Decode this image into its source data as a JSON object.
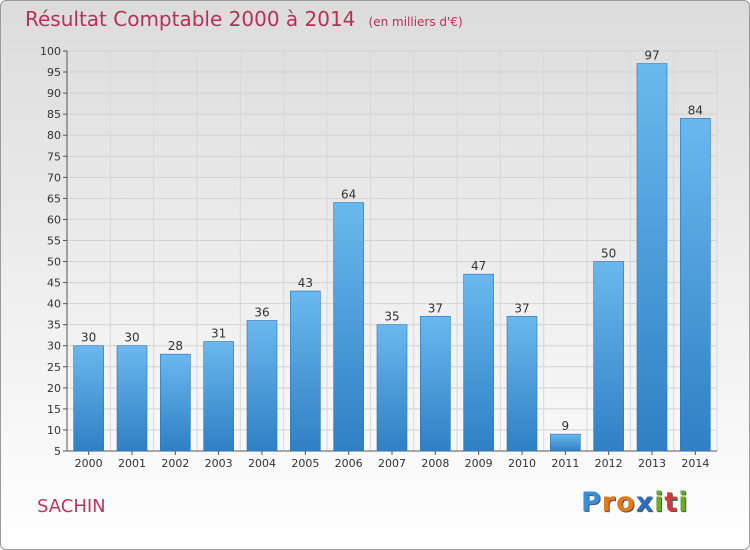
{
  "header": {
    "title": "Résultat Comptable 2000 à 2014",
    "subtitle": "(en milliers d'€)"
  },
  "footer": {
    "place": "SACHIN",
    "logo_text": "Proxiti",
    "logo_letters": [
      "P",
      "r",
      "o",
      "x",
      "i",
      "t",
      "i"
    ],
    "logo_colors": [
      "#3a8fd8",
      "#e07a1f",
      "#e07a1f",
      "#2c6fc0",
      "#6aa82e",
      "#d23a3a",
      "#6aa82e"
    ]
  },
  "colors": {
    "bar_light": "#6ab8ee",
    "bar_dark": "#2f80c4",
    "title": "#b8305a"
  },
  "chart_data": {
    "type": "bar",
    "categories": [
      "2000",
      "2001",
      "2002",
      "2003",
      "2004",
      "2005",
      "2006",
      "2007",
      "2008",
      "2009",
      "2010",
      "2011",
      "2012",
      "2013",
      "2014"
    ],
    "values": [
      30,
      30,
      28,
      31,
      36,
      43,
      64,
      35,
      37,
      47,
      37,
      9,
      50,
      97,
      84
    ],
    "ylim": [
      5,
      100
    ],
    "yticks": [
      5,
      10,
      15,
      20,
      25,
      30,
      35,
      40,
      45,
      50,
      55,
      60,
      65,
      70,
      75,
      80,
      85,
      90,
      95,
      100
    ],
    "grid": true,
    "data_labels": true
  }
}
